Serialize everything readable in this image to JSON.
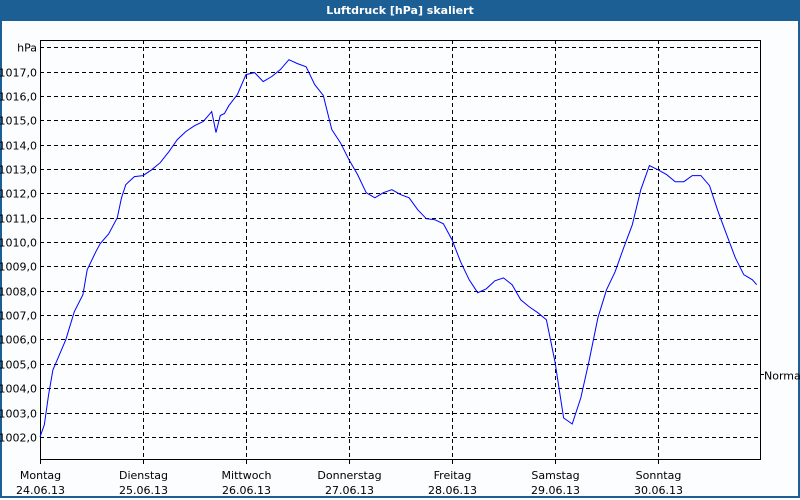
{
  "window": {
    "title": "Luftdruck [hPa] skaliert"
  },
  "colors": {
    "titlebar": "#1c5f94",
    "line": "#0000ff",
    "grid": "#000000"
  },
  "chart_data": {
    "type": "line",
    "title": "Luftdruck [hPa] skaliert",
    "ylabel": "hPa",
    "ylim": [
      1001.05,
      1018.3
    ],
    "xlim": [
      "2013-06-24T00:00",
      "2013-07-01T00:00"
    ],
    "grid": true,
    "y_ticks": [
      "1002,0",
      "1003,0",
      "1004,0",
      "1005,0",
      "1006,0",
      "1007,0",
      "1008,0",
      "1009,0",
      "1010,0",
      "1011,0",
      "1012,0",
      "1013,0",
      "1014,0",
      "1015,0",
      "1016,0",
      "1017,0"
    ],
    "x_ticks": [
      {
        "day": "Montag",
        "date": "24.06.13"
      },
      {
        "day": "Dienstag",
        "date": "25.06.13"
      },
      {
        "day": "Mittwoch",
        "date": "26.06.13"
      },
      {
        "day": "Donnerstag",
        "date": "27.06.13"
      },
      {
        "day": "Freitag",
        "date": "28.06.13"
      },
      {
        "day": "Samstag",
        "date": "29.06.13"
      },
      {
        "day": "Sonntag",
        "date": "30.06.13"
      }
    ],
    "reference": {
      "label": "Normal",
      "value": 1004.6
    },
    "series": [
      {
        "points": [
          [
            "2013-06-24T00:00",
            1002.0
          ],
          [
            "2013-06-24T01:00",
            1002.49
          ],
          [
            "2013-06-24T02:00",
            1003.73
          ],
          [
            "2013-06-24T03:00",
            1004.75
          ],
          [
            "2013-06-24T04:00",
            1005.16
          ],
          [
            "2013-06-24T06:00",
            1005.99
          ],
          [
            "2013-06-24T08:00",
            1007.14
          ],
          [
            "2013-06-24T10:00",
            1007.84
          ],
          [
            "2013-06-24T11:00",
            1008.86
          ],
          [
            "2013-06-24T13:00",
            1009.6
          ],
          [
            "2013-06-24T14:00",
            1009.93
          ],
          [
            "2013-06-24T16:00",
            1010.34
          ],
          [
            "2013-06-24T18:00",
            1011.0
          ],
          [
            "2013-06-24T19:00",
            1011.82
          ],
          [
            "2013-06-24T20:00",
            1012.36
          ],
          [
            "2013-06-24T22:00",
            1012.69
          ],
          [
            "2013-06-25T00:00",
            1012.73
          ],
          [
            "2013-06-25T02:00",
            1012.97
          ],
          [
            "2013-06-25T04:00",
            1013.26
          ],
          [
            "2013-06-25T06:00",
            1013.71
          ],
          [
            "2013-06-25T08:00",
            1014.21
          ],
          [
            "2013-06-25T10:00",
            1014.54
          ],
          [
            "2013-06-25T12:00",
            1014.78
          ],
          [
            "2013-06-25T14:00",
            1014.95
          ],
          [
            "2013-06-25T15:00",
            1015.15
          ],
          [
            "2013-06-25T16:00",
            1015.36
          ],
          [
            "2013-06-25T17:00",
            1014.5
          ],
          [
            "2013-06-25T18:00",
            1015.2
          ],
          [
            "2013-06-25T19:00",
            1015.28
          ],
          [
            "2013-06-25T20:00",
            1015.6
          ],
          [
            "2013-06-25T22:00",
            1016.06
          ],
          [
            "2013-06-26T00:00",
            1016.88
          ],
          [
            "2013-06-26T02:00",
            1016.96
          ],
          [
            "2013-06-26T04:00",
            1016.59
          ],
          [
            "2013-06-26T06:00",
            1016.8
          ],
          [
            "2013-06-26T08:00",
            1017.08
          ],
          [
            "2013-06-26T10:00",
            1017.49
          ],
          [
            "2013-06-26T12:00",
            1017.33
          ],
          [
            "2013-06-26T14:00",
            1017.2
          ],
          [
            "2013-06-26T16:00",
            1016.47
          ],
          [
            "2013-06-26T18:00",
            1016.02
          ],
          [
            "2013-06-26T20:00",
            1014.62
          ],
          [
            "2013-06-26T22:00",
            1014.08
          ],
          [
            "2013-06-27T00:00",
            1013.38
          ],
          [
            "2013-06-27T02:00",
            1012.77
          ],
          [
            "2013-06-27T04:00",
            1012.03
          ],
          [
            "2013-06-27T06:00",
            1011.82
          ],
          [
            "2013-06-27T08:00",
            1012.03
          ],
          [
            "2013-06-27T10:00",
            1012.15
          ],
          [
            "2013-06-27T12:00",
            1011.95
          ],
          [
            "2013-06-27T14:00",
            1011.82
          ],
          [
            "2013-06-27T16:00",
            1011.33
          ],
          [
            "2013-06-27T18:00",
            1010.96
          ],
          [
            "2013-06-27T20:00",
            1010.92
          ],
          [
            "2013-06-27T22:00",
            1010.75
          ],
          [
            "2013-06-28T00:00",
            1010.1
          ],
          [
            "2013-06-28T02:00",
            1009.19
          ],
          [
            "2013-06-28T04:00",
            1008.45
          ],
          [
            "2013-06-28T06:00",
            1007.92
          ],
          [
            "2013-06-28T08:00",
            1008.08
          ],
          [
            "2013-06-28T10:00",
            1008.41
          ],
          [
            "2013-06-28T12:00",
            1008.53
          ],
          [
            "2013-06-28T14:00",
            1008.25
          ],
          [
            "2013-06-28T16:00",
            1007.63
          ],
          [
            "2013-06-28T18:00",
            1007.34
          ],
          [
            "2013-06-28T20:00",
            1007.1
          ],
          [
            "2013-06-28T22:00",
            1006.81
          ],
          [
            "2013-06-29T00:00",
            1005.08
          ],
          [
            "2013-06-29T02:00",
            1002.78
          ],
          [
            "2013-06-29T04:00",
            1002.53
          ],
          [
            "2013-06-29T06:00",
            1003.6
          ],
          [
            "2013-06-29T08:00",
            1005.16
          ],
          [
            "2013-06-29T10:00",
            1006.89
          ],
          [
            "2013-06-29T12:00",
            1008.04
          ],
          [
            "2013-06-29T14:00",
            1008.78
          ],
          [
            "2013-06-29T16:00",
            1009.77
          ],
          [
            "2013-06-29T18:00",
            1010.71
          ],
          [
            "2013-06-29T20:00",
            1012.15
          ],
          [
            "2013-06-29T22:00",
            1013.14
          ],
          [
            "2013-06-30T00:00",
            1012.97
          ],
          [
            "2013-06-30T02:00",
            1012.77
          ],
          [
            "2013-06-30T04:00",
            1012.48
          ],
          [
            "2013-06-30T06:00",
            1012.48
          ],
          [
            "2013-06-30T08:00",
            1012.73
          ],
          [
            "2013-06-30T10:00",
            1012.73
          ],
          [
            "2013-06-30T12:00",
            1012.32
          ],
          [
            "2013-06-30T14:00",
            1011.25
          ],
          [
            "2013-06-30T16:00",
            1010.3
          ],
          [
            "2013-06-30T18:00",
            1009.36
          ],
          [
            "2013-06-30T20:00",
            1008.66
          ],
          [
            "2013-06-30T22:00",
            1008.45
          ],
          [
            "2013-06-30T23:00",
            1008.25
          ]
        ]
      }
    ]
  }
}
